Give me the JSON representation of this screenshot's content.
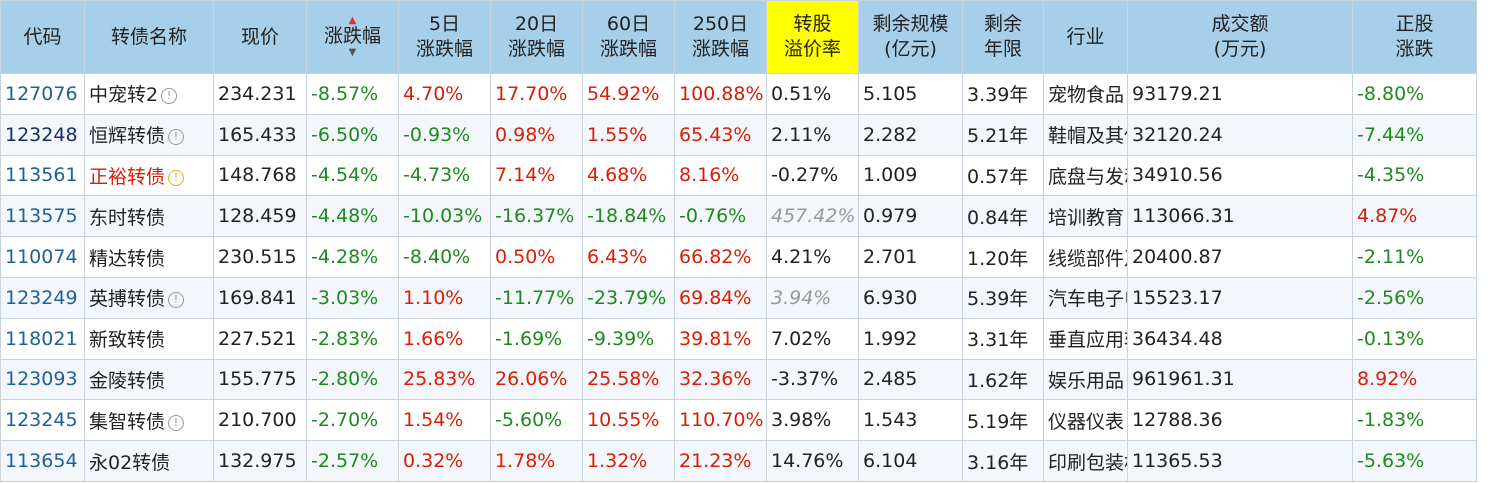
{
  "headers": {
    "code": "代码",
    "name": "转债名称",
    "price": "现价",
    "chg": "涨跌幅",
    "chg5_l1": "5日",
    "chg5_l2": "涨跌幅",
    "chg20_l1": "20日",
    "chg20_l2": "涨跌幅",
    "chg60_l1": "60日",
    "chg60_l2": "涨跌幅",
    "chg250_l1": "250日",
    "chg250_l2": "涨跌幅",
    "premium_l1": "转股",
    "premium_l2": "溢价率",
    "size_l1": "剩余规模",
    "size_l2": "(亿元)",
    "years_l1": "剩余",
    "years_l2": "年限",
    "industry": "行业",
    "volume_l1": "成交额",
    "volume_l2": "(万元)",
    "stock_l1": "正股",
    "stock_l2": "涨跌"
  },
  "rows": [
    {
      "code": "127076",
      "name": "中宠转2",
      "price": "234.231",
      "chg": "-8.57%",
      "chg5": "4.70%",
      "chg20": "17.70%",
      "chg60": "54.92%",
      "chg250": "100.88%",
      "premium": "0.51%",
      "size": "5.105",
      "years": "3.39年",
      "industry": "宠物食品",
      "volume": "93179.21",
      "stock": "-8.80%"
    },
    {
      "code": "123248",
      "name": "恒辉转债",
      "price": "165.433",
      "chg": "-6.50%",
      "chg5": "-0.93%",
      "chg20": "0.98%",
      "chg60": "1.55%",
      "chg250": "65.43%",
      "premium": "2.11%",
      "size": "2.282",
      "years": "5.21年",
      "industry": "鞋帽及其他",
      "volume": "32120.24",
      "stock": "-7.44%"
    },
    {
      "code": "113561",
      "name": "正裕转债",
      "price": "148.768",
      "chg": "-4.54%",
      "chg5": "-4.73%",
      "chg20": "7.14%",
      "chg60": "4.68%",
      "chg250": "8.16%",
      "premium": "-0.27%",
      "size": "1.009",
      "years": "0.57年",
      "industry": "底盘与发动机系统",
      "volume": "34910.56",
      "stock": "-4.35%"
    },
    {
      "code": "113575",
      "name": "东时转债",
      "price": "128.459",
      "chg": "-4.48%",
      "chg5": "-10.03%",
      "chg20": "-16.37%",
      "chg60": "-18.84%",
      "chg250": "-0.76%",
      "premium": "457.42%",
      "size": "0.979",
      "years": "0.84年",
      "industry": "培训教育",
      "volume": "113066.31",
      "stock": "4.87%"
    },
    {
      "code": "110074",
      "name": "精达转债",
      "price": "230.515",
      "chg": "-4.28%",
      "chg5": "-8.40%",
      "chg20": "0.50%",
      "chg60": "6.43%",
      "chg250": "66.82%",
      "premium": "4.21%",
      "size": "2.701",
      "years": "1.20年",
      "industry": "线缆部件及其他",
      "volume": "20400.87",
      "stock": "-2.11%"
    },
    {
      "code": "123249",
      "name": "英搏转债",
      "price": "169.841",
      "chg": "-3.03%",
      "chg5": "1.10%",
      "chg20": "-11.77%",
      "chg60": "-23.79%",
      "chg250": "69.84%",
      "premium": "3.94%",
      "size": "6.930",
      "years": "5.39年",
      "industry": "汽车电子电气系统",
      "volume": "15523.17",
      "stock": "-2.56%"
    },
    {
      "code": "118021",
      "name": "新致转债",
      "price": "227.521",
      "chg": "-2.83%",
      "chg5": "1.66%",
      "chg20": "-1.69%",
      "chg60": "-9.39%",
      "chg250": "39.81%",
      "premium": "7.02%",
      "size": "1.992",
      "years": "3.31年",
      "industry": "垂直应用软件",
      "volume": "36434.48",
      "stock": "-0.13%"
    },
    {
      "code": "123093",
      "name": "金陵转债",
      "price": "155.775",
      "chg": "-2.80%",
      "chg5": "25.83%",
      "chg20": "26.06%",
      "chg60": "25.58%",
      "chg250": "32.36%",
      "premium": "-3.37%",
      "size": "2.485",
      "years": "1.62年",
      "industry": "娱乐用品",
      "volume": "961961.31",
      "stock": "8.92%"
    },
    {
      "code": "123245",
      "name": "集智转债",
      "price": "210.700",
      "chg": "-2.70%",
      "chg5": "1.54%",
      "chg20": "-5.60%",
      "chg60": "10.55%",
      "chg250": "110.70%",
      "premium": "3.98%",
      "size": "1.543",
      "years": "5.19年",
      "industry": "仪器仪表",
      "volume": "12788.36",
      "stock": "-1.83%"
    },
    {
      "code": "113654",
      "name": "永02转债",
      "price": "132.975",
      "chg": "-2.57%",
      "chg5": "0.32%",
      "chg20": "1.78%",
      "chg60": "1.32%",
      "chg250": "21.23%",
      "premium": "14.76%",
      "size": "6.104",
      "years": "3.16年",
      "industry": "印刷包装机械",
      "volume": "11365.53",
      "stock": "-5.63%"
    }
  ],
  "colors": {
    "up": "#d81e06",
    "down": "#1e8a1e",
    "header_bg": "#a8cfe9",
    "highlight": "#ffff00"
  }
}
